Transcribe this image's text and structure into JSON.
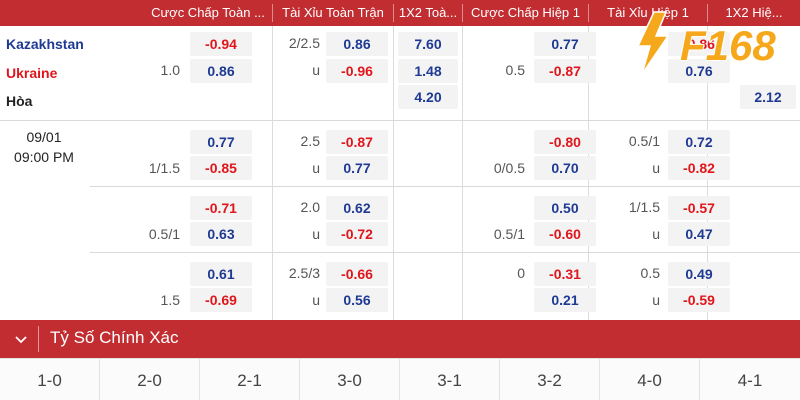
{
  "headers": [
    "Cược Chấp Toàn ...",
    "Tài Xỉu Toàn Trận",
    "1X2 Toà...",
    "Cược Chấp Hiệp 1",
    "Tài Xỉu Hiệp 1",
    "1X2 Hiệ..."
  ],
  "match": {
    "home": "Kazakhstan",
    "away": "Ukraine",
    "draw": "Hòa",
    "date": "09/01",
    "time": "09:00 PM"
  },
  "odds": {
    "main": {
      "hdp_full": {
        "line": "1.0",
        "home": "-0.94",
        "away": "0.86"
      },
      "ou_full": {
        "line": "2/2.5",
        "over": "0.86",
        "under_label": "u",
        "under": "-0.96"
      },
      "x12_full": {
        "home": "7.60",
        "away": "1.48",
        "draw": "4.20"
      },
      "hdp_half": {
        "line": "0.5",
        "home": "0.77",
        "away": "-0.87"
      },
      "ou_half": {
        "home": "-0.86",
        "away": "0.76"
      },
      "x12_half": {
        "draw": "2.12"
      }
    },
    "rows": [
      {
        "hdp_full": {
          "line": "1/1.5",
          "home": "0.77",
          "away": "-0.85"
        },
        "ou_full": {
          "line": "2.5",
          "over": "-0.87",
          "under_label": "u",
          "under": "0.77"
        },
        "hdp_half": {
          "line": "0/0.5",
          "home": "-0.80",
          "away": "0.70"
        },
        "ou_half": {
          "line": "0.5/1",
          "over": "0.72",
          "under_label": "u",
          "under": "-0.82"
        }
      },
      {
        "hdp_full": {
          "line": "0.5/1",
          "home": "-0.71",
          "away": "0.63"
        },
        "ou_full": {
          "line": "2.0",
          "over": "0.62",
          "under_label": "u",
          "under": "-0.72"
        },
        "hdp_half": {
          "line": "0.5/1",
          "home": "0.50",
          "away": "-0.60"
        },
        "ou_half": {
          "line": "1/1.5",
          "over": "-0.57",
          "under_label": "u",
          "under": "0.47"
        }
      },
      {
        "hdp_full": {
          "line": "1.5",
          "home": "0.61",
          "away": "-0.69"
        },
        "ou_full": {
          "line": "2.5/3",
          "over": "-0.66",
          "under_label": "u",
          "under": "0.56"
        },
        "hdp_half": {
          "line": "0",
          "home": "-0.31",
          "away": "0.21"
        },
        "ou_half": {
          "line": "0.5",
          "over": "0.49",
          "under_label": "u",
          "under": "-0.59"
        }
      }
    ]
  },
  "correct_score": {
    "title": "Tỷ Số Chính Xác",
    "scores": [
      "1-0",
      "2-0",
      "2-1",
      "3-0",
      "3-1",
      "3-2",
      "4-0",
      "4-1"
    ]
  },
  "logo": {
    "text": "F168"
  },
  "colors": {
    "header": "#c22d32",
    "home": "#1f3a93",
    "away": "#e0161d",
    "logo": "#f6a81c"
  }
}
